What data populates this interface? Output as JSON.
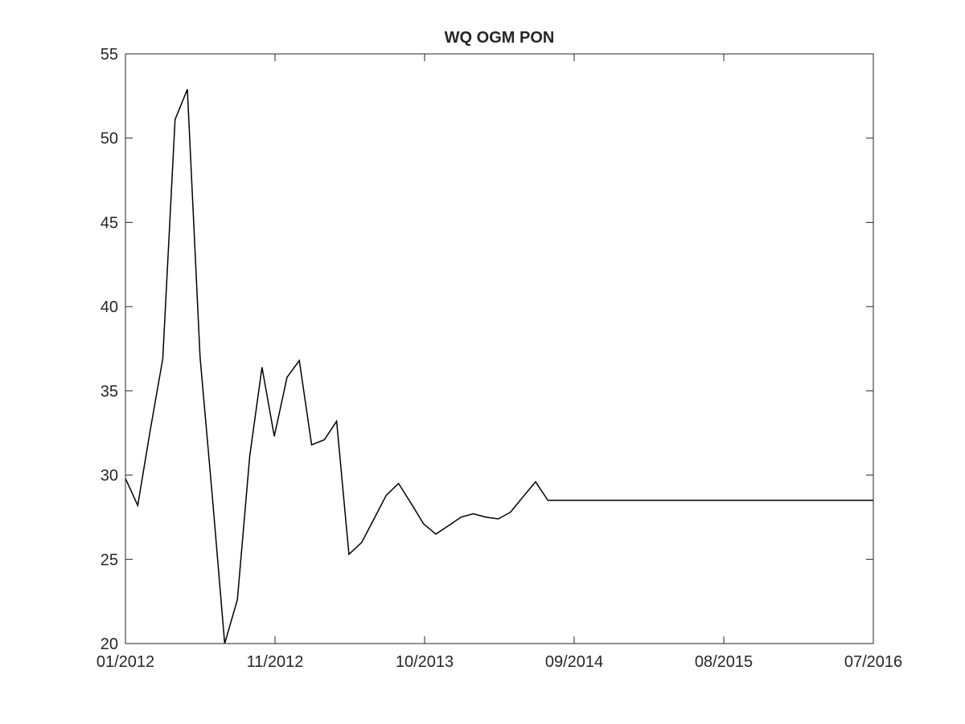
{
  "chart_data": {
    "type": "line",
    "title": "WQ OGM PON",
    "xlabel": "",
    "ylabel": "",
    "xlim": [
      "2012-01-01",
      "2016-07-01"
    ],
    "ylim": [
      20,
      55
    ],
    "grid": false,
    "box": true,
    "x_tick_labels": [
      "01/2012",
      "11/2012",
      "10/2013",
      "09/2014",
      "08/2015",
      "07/2016"
    ],
    "y_ticks": [
      20,
      25,
      30,
      35,
      40,
      45,
      50,
      55
    ],
    "line_color": "#000000",
    "series": [
      {
        "name": "",
        "x": [
          "2012-01-01",
          "2012-01-28",
          "2012-02-24",
          "2012-03-23",
          "2012-04-19",
          "2012-05-16",
          "2012-06-13",
          "2012-07-10",
          "2012-08-06",
          "2012-09-03",
          "2012-09-30",
          "2012-10-27",
          "2012-11-23",
          "2012-12-21",
          "2013-01-17",
          "2013-02-13",
          "2013-03-13",
          "2013-04-09",
          "2013-05-06",
          "2013-06-03",
          "2013-06-30",
          "2013-07-27",
          "2013-08-23",
          "2013-09-20",
          "2013-10-17",
          "2013-11-13",
          "2013-12-11",
          "2014-01-07",
          "2014-02-03",
          "2014-03-03",
          "2014-03-30",
          "2014-04-26",
          "2014-05-23",
          "2014-06-20",
          "2014-07-17",
          "2014-08-13",
          "2014-09-10",
          "2014-10-07",
          "2016-07-01"
        ],
        "y": [
          29.8,
          28.2,
          32.6,
          36.9,
          51.1,
          52.9,
          37.0,
          28.7,
          20.0,
          22.6,
          31.1,
          36.4,
          32.3,
          35.8,
          36.8,
          31.8,
          32.1,
          33.2,
          25.3,
          26.0,
          27.4,
          28.8,
          29.5,
          28.3,
          27.1,
          26.5,
          27.0,
          27.5,
          27.7,
          27.5,
          27.4,
          27.8,
          28.7,
          29.6,
          28.5,
          28.5,
          28.5,
          28.5,
          28.5
        ]
      }
    ]
  }
}
